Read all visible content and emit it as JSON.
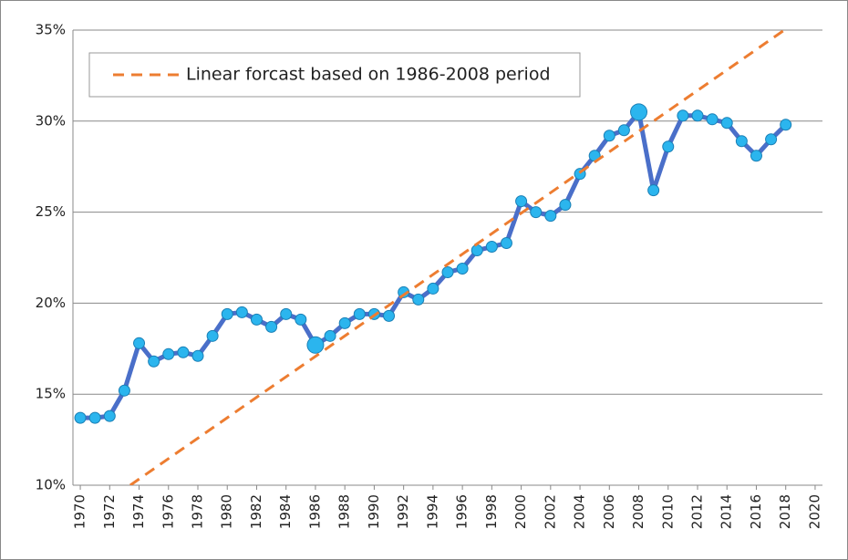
{
  "chart_data": {
    "type": "line",
    "x": [
      1970,
      1971,
      1972,
      1973,
      1974,
      1975,
      1976,
      1977,
      1978,
      1979,
      1980,
      1981,
      1982,
      1983,
      1984,
      1985,
      1986,
      1987,
      1988,
      1989,
      1990,
      1991,
      1992,
      1993,
      1994,
      1995,
      1996,
      1997,
      1998,
      1999,
      2000,
      2001,
      2002,
      2003,
      2004,
      2005,
      2006,
      2007,
      2008,
      2009,
      2010,
      2011,
      2012,
      2013,
      2014,
      2015,
      2016,
      2017,
      2018
    ],
    "series": [
      {
        "color": "#4a6fc9",
        "marker_color": "#2bb5ee",
        "values": [
          13.7,
          13.7,
          13.8,
          15.2,
          17.8,
          16.8,
          17.2,
          17.3,
          17.1,
          18.2,
          19.4,
          19.5,
          19.1,
          18.7,
          19.4,
          19.1,
          17.7,
          18.2,
          18.9,
          19.4,
          19.4,
          19.3,
          20.6,
          20.2,
          20.8,
          21.7,
          21.9,
          22.9,
          23.1,
          23.3,
          25.6,
          25.0,
          24.8,
          25.4,
          27.1,
          28.1,
          29.2,
          29.5,
          30.5,
          26.2,
          28.6,
          30.3,
          30.3,
          30.1,
          29.9,
          28.9,
          28.1,
          29.0,
          29.8
        ],
        "highlight_x": [
          1986,
          2008
        ]
      },
      {
        "name": "Linear forcast based on 1986-2008 period",
        "color": "#ed7d31",
        "dashed": true,
        "x": [
          1973.4,
          2017.9
        ],
        "values": [
          10,
          35
        ]
      }
    ],
    "xlim": [
      1969.5,
      2020.5
    ],
    "xticks": [
      1970,
      1972,
      1974,
      1976,
      1978,
      1980,
      1982,
      1984,
      1986,
      1988,
      1990,
      1992,
      1994,
      1996,
      1998,
      2000,
      2002,
      2004,
      2006,
      2008,
      2010,
      2012,
      2014,
      2016,
      2018,
      2020
    ],
    "ylim": [
      10,
      35
    ],
    "yticks": [
      {
        "value": 10,
        "label": "10%"
      },
      {
        "value": 15,
        "label": "15%"
      },
      {
        "value": 20,
        "label": "20%"
      },
      {
        "value": 25,
        "label": "25%"
      },
      {
        "value": 30,
        "label": "30%"
      },
      {
        "value": 35,
        "label": "35%"
      }
    ],
    "grid": true,
    "legend": "top-left"
  }
}
